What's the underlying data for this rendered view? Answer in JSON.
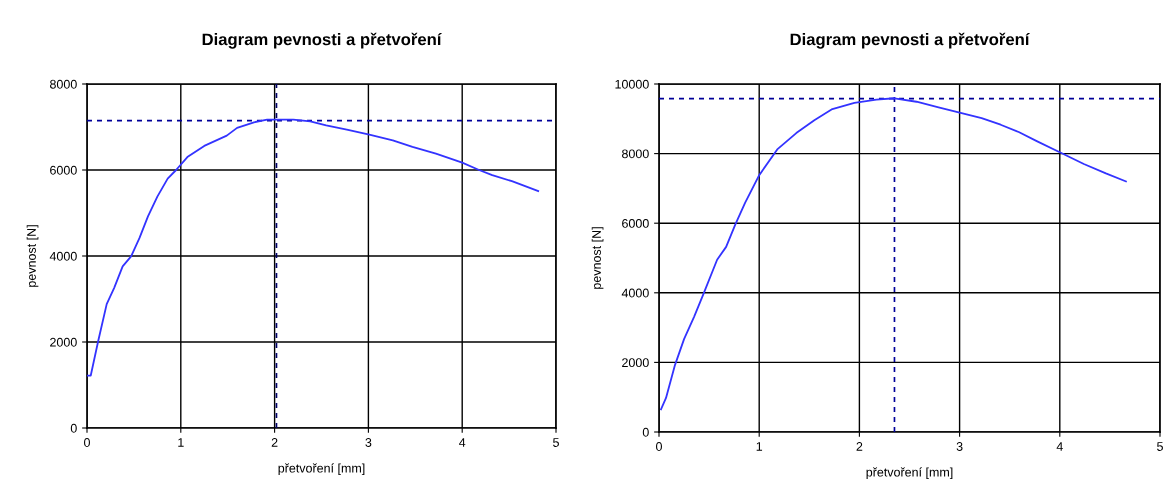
{
  "chart_data": [
    {
      "type": "line",
      "title": "Diagram pevnosti a přetvoření",
      "xlabel": "přetvoření [mm]",
      "ylabel": "pevnost [N]",
      "xlim": [
        0,
        5
      ],
      "ylim": [
        0,
        8000
      ],
      "xticks": [
        0,
        1,
        2,
        3,
        4,
        5
      ],
      "yticks": [
        0,
        2000,
        4000,
        6000,
        8000
      ],
      "grid": true,
      "legend": false,
      "marker": "none",
      "line_style": "solid",
      "series": [
        {
          "color": "#3333ff",
          "x": [
            0,
            0.04,
            0.12,
            0.21,
            0.29,
            0.38,
            0.47,
            0.56,
            0.65,
            0.75,
            0.86,
            0.95,
            1.07,
            1.25,
            1.49,
            1.6,
            1.78,
            1.92,
            2.2,
            2.38,
            2.55,
            2.77,
            3.01,
            3.26,
            3.47,
            3.72,
            4.0,
            4.18,
            4.32,
            4.53,
            4.81
          ],
          "values": [
            1220,
            1220,
            2030,
            2880,
            3260,
            3760,
            3990,
            4420,
            4920,
            5380,
            5800,
            6000,
            6300,
            6560,
            6800,
            6980,
            7110,
            7170,
            7170,
            7130,
            7040,
            6940,
            6820,
            6690,
            6540,
            6380,
            6170,
            6000,
            5880,
            5740,
            5510
          ]
        }
      ],
      "ref_lines": [
        {
          "axis": "y",
          "value": 7150,
          "color": "#000099",
          "line_style": "dashed"
        },
        {
          "axis": "x",
          "value": 2.02,
          "color": "#000066",
          "line_style": "dashed"
        }
      ]
    },
    {
      "type": "line",
      "title": "Diagram pevnosti a přetvoření",
      "xlabel": "přetvoření [mm]",
      "ylabel": "pevnost [N]",
      "xlim": [
        0,
        5
      ],
      "ylim": [
        0,
        10000
      ],
      "xticks": [
        0,
        1,
        2,
        3,
        4,
        5
      ],
      "yticks": [
        0,
        2000,
        4000,
        6000,
        8000,
        10000
      ],
      "grid": true,
      "legend": false,
      "marker": "none",
      "line_style": "solid",
      "series": [
        {
          "color": "#3333ff",
          "x": [
            0.02,
            0.07,
            0.16,
            0.25,
            0.35,
            0.44,
            0.58,
            0.67,
            0.76,
            0.86,
            1.0,
            1.18,
            1.37,
            1.55,
            1.73,
            1.95,
            2.17,
            2.35,
            2.57,
            2.79,
            3.0,
            3.22,
            3.41,
            3.59,
            3.77,
            4.02,
            4.24,
            4.46,
            4.66
          ],
          "values": [
            650,
            980,
            1930,
            2670,
            3310,
            3940,
            4950,
            5320,
            5950,
            6590,
            7380,
            8120,
            8590,
            8960,
            9280,
            9460,
            9550,
            9590,
            9490,
            9330,
            9180,
            9020,
            8830,
            8620,
            8360,
            8010,
            7700,
            7430,
            7200
          ]
        }
      ],
      "ref_lines": [
        {
          "axis": "y",
          "value": 9580,
          "color": "#000099",
          "line_style": "dashed"
        },
        {
          "axis": "x",
          "value": 2.35,
          "color": "#000099",
          "line_style": "dashed"
        }
      ]
    }
  ]
}
